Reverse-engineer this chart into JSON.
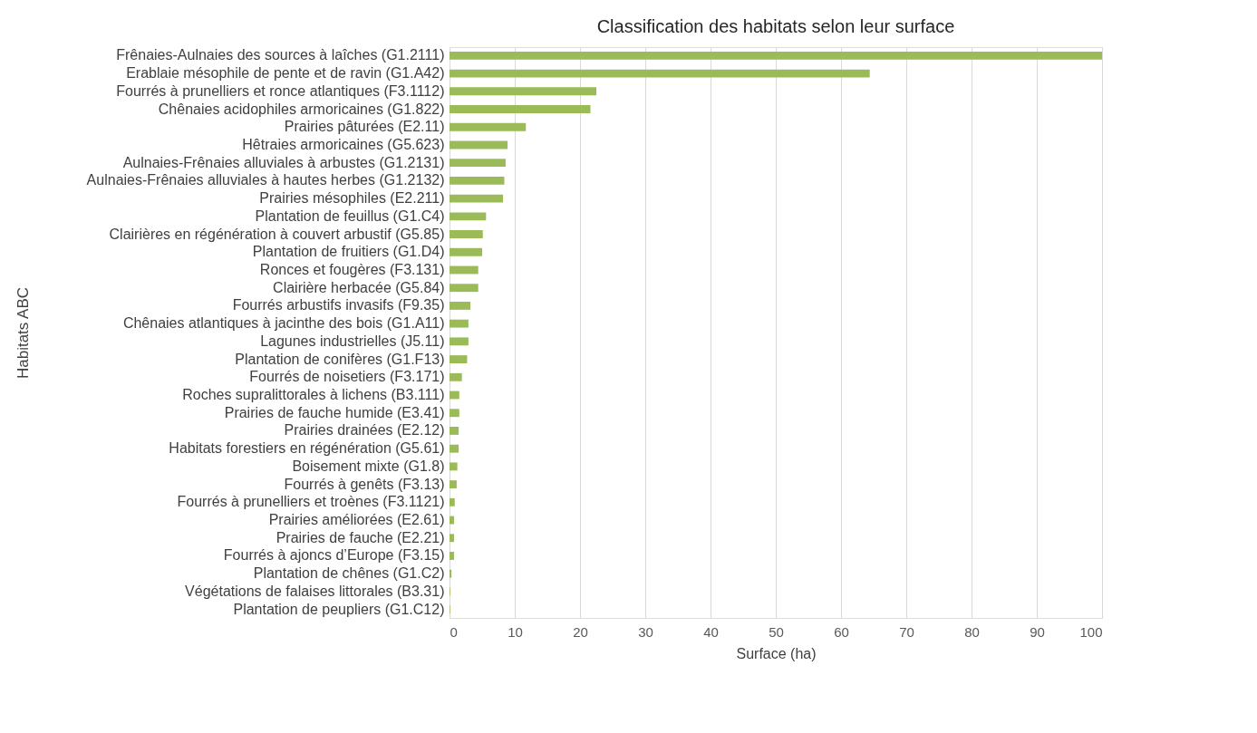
{
  "chart_data": {
    "type": "bar",
    "orientation": "horizontal",
    "title": "Classification des habitats selon leur surface",
    "xlabel": "Surface (ha)",
    "ylabel": "Habitats ABC",
    "categories": [
      "Frênaies-Aulnaies des sources à laîches (G1.2111)",
      "Erablaie mésophile de pente et de ravin (G1.A42)",
      "Fourrés à prunelliers et ronce atlantiques (F3.1112)",
      "Chênaies acidophiles armoricaines (G1.822)",
      "Prairies pâturées (E2.11)",
      "Hêtraies armoricaines (G5.623)",
      "Aulnaies-Frênaies alluviales à arbustes (G1.2131)",
      "Aulnaies-Frênaies alluviales  à hautes herbes (G1.2132)",
      "Prairies mésophiles (E2.211)",
      "Plantation de feuillus (G1.C4)",
      "Clairières en régénération à couvert arbustif (G5.85)",
      "Plantation de fruitiers (G1.D4)",
      "Ronces et fougères (F3.131)",
      "Clairière herbacée (G5.84)",
      "Fourrés arbustifs invasifs (F9.35)",
      "Chênaies atlantiques à jacinthe des bois (G1.A11)",
      "Lagunes industrielles (J5.11)",
      "Plantation de conifères (G1.F13)",
      "Fourrés de noisetiers (F3.171)",
      "Roches supralittorales à lichens (B3.111)",
      "Prairies de fauche humide (E3.41)",
      "Prairies drainées (E2.12)",
      "Habitats forestiers en régénération (G5.61)",
      "Boisement mixte (G1.8)",
      "Fourrés à genêts (F3.13)",
      "Fourrés à prunelliers et troènes (F3.1121)",
      "Prairies améliorées (E2.61)",
      "Prairies de fauche (E2.21)",
      "Fourrés à ajoncs d’Europe (F3.15)",
      "Plantation de chênes (G1.C2)",
      "Végétations de falaises littorales (B3.31)",
      "Plantation de peupliers (G1.C12)"
    ],
    "values": [
      100,
      64.4,
      22.5,
      21.6,
      11.7,
      8.9,
      8.6,
      8.4,
      8.2,
      5.6,
      5.1,
      5.0,
      4.4,
      4.4,
      3.2,
      2.9,
      2.9,
      2.7,
      1.9,
      1.5,
      1.5,
      1.4,
      1.4,
      1.2,
      1.1,
      0.8,
      0.7,
      0.7,
      0.7,
      0.3,
      0.1,
      0.1
    ],
    "color": "#9bbb59",
    "xlim": [
      0,
      100
    ],
    "xticks": [
      0,
      10,
      20,
      30,
      40,
      50,
      60,
      70,
      80,
      90,
      100
    ],
    "grid": "x"
  }
}
